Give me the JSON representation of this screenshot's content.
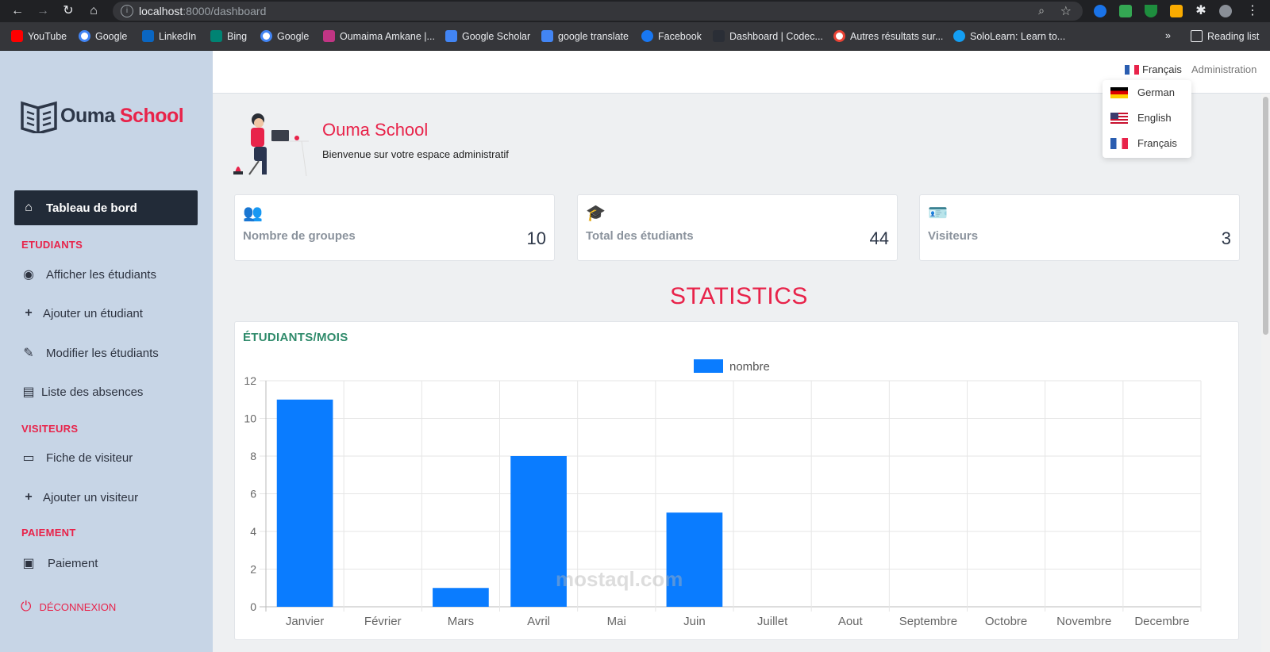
{
  "browser": {
    "url_host": "localhost",
    "url_rest": ":8000/dashboard",
    "bookmarks": [
      "YouTube",
      "Google",
      "LinkedIn",
      "Bing",
      "Google",
      "Oumaima Amkane |...",
      "Google Scholar",
      "google translate",
      "Facebook",
      "Dashboard | Codec...",
      "Autres résultats sur...",
      "SoloLearn: Learn to..."
    ],
    "overflow": "»",
    "reading_list": "Reading list"
  },
  "logo": {
    "part1": "Ouma",
    "part2": "School"
  },
  "sidebar": {
    "dashboard": "Tableau de bord",
    "sections": {
      "etudiants": "ETUDIANTS",
      "visiteurs": "VISITEURS",
      "paiement": "PAIEMENT"
    },
    "items": {
      "afficher": "Afficher les étudiants",
      "ajouter": "Ajouter un étudiant",
      "modifier": "Modifier les étudiants",
      "absences": "Liste des absences",
      "fiche": "Fiche de visiteur",
      "ajouter_visiteur": "Ajouter un visiteur",
      "paiement": "Paiement"
    },
    "logout": "DÉCONNEXION"
  },
  "topbar": {
    "current_lang": "Français",
    "admin": "Administration",
    "languages": [
      "German",
      "English",
      "Français"
    ]
  },
  "welcome": {
    "title": "Ouma School",
    "subtitle": "Bienvenue sur votre espace administratif"
  },
  "cards": [
    {
      "label": "Nombre de groupes",
      "value": "10",
      "icon": "users-icon"
    },
    {
      "label": "Total des étudiants",
      "value": "44",
      "icon": "graduate-icon"
    },
    {
      "label": "Visiteurs",
      "value": "3",
      "icon": "id-card-icon"
    }
  ],
  "statistics_title": "STATISTICS",
  "chart_title": "ÉTUDIANTS/MOIS",
  "watermark": "mostaql.com",
  "chart_data": {
    "type": "bar",
    "categories": [
      "Janvier",
      "Février",
      "Mars",
      "Avril",
      "Mai",
      "Juin",
      "Juillet",
      "Aout",
      "Septembre",
      "Octobre",
      "Novembre",
      "Decembre"
    ],
    "series": [
      {
        "name": "nombre",
        "values": [
          11,
          0,
          1,
          8,
          0,
          5,
          0,
          0,
          0,
          0,
          0,
          0
        ]
      }
    ],
    "ylim": [
      0,
      12
    ],
    "yticks": [
      0,
      2,
      4,
      6,
      8,
      10,
      12
    ],
    "legend": "top-center",
    "grid": true,
    "color": "#0a7cff"
  }
}
